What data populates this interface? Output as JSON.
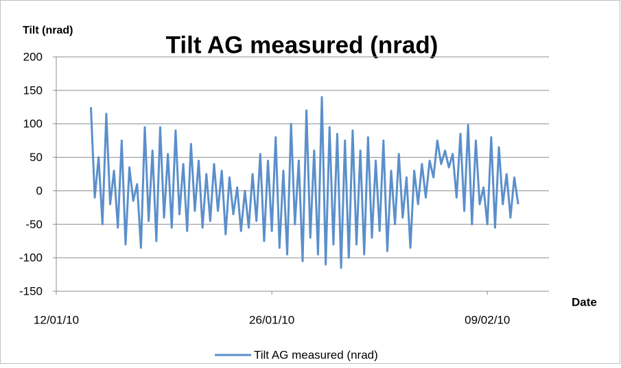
{
  "chart_data": {
    "type": "line",
    "title": "Tilt AG measured (nrad)",
    "ylabel": "Tilt (nrad)",
    "xlabel": "Date",
    "xlim": [
      40190,
      40222
    ],
    "xticks": [
      {
        "value": 40190,
        "label": "12/01/10"
      },
      {
        "value": 40204,
        "label": "26/01/10"
      },
      {
        "value": 40218,
        "label": "09/02/10"
      }
    ],
    "ylim": [
      -150,
      200
    ],
    "yticks": [
      -150,
      -100,
      -50,
      0,
      50,
      100,
      150,
      200
    ],
    "grid": true,
    "legend": "bottom",
    "x": [
      40192.25,
      40192.5,
      40192.75,
      40193,
      40193.25,
      40193.5,
      40193.75,
      40194,
      40194.25,
      40194.5,
      40194.75,
      40195,
      40195.25,
      40195.5,
      40195.75,
      40196,
      40196.25,
      40196.5,
      40196.75,
      40197,
      40197.25,
      40197.5,
      40197.75,
      40198,
      40198.25,
      40198.5,
      40198.75,
      40199,
      40199.25,
      40199.5,
      40199.75,
      40200,
      40200.25,
      40200.5,
      40200.75,
      40201,
      40201.25,
      40201.5,
      40201.75,
      40202,
      40202.25,
      40202.5,
      40202.75,
      40203,
      40203.25,
      40203.5,
      40203.75,
      40204,
      40204.25,
      40204.5,
      40204.75,
      40205,
      40205.25,
      40205.5,
      40205.75,
      40206,
      40206.25,
      40206.5,
      40206.75,
      40207,
      40207.25,
      40207.5,
      40207.75,
      40208,
      40208.25,
      40208.5,
      40208.75,
      40209,
      40209.25,
      40209.5,
      40209.75,
      40210,
      40210.25,
      40210.5,
      40210.75,
      40211,
      40211.25,
      40211.5,
      40211.75,
      40212,
      40212.25,
      40212.5,
      40212.75,
      40213,
      40213.25,
      40213.5,
      40213.75,
      40214,
      40214.25,
      40214.5,
      40214.75,
      40215,
      40215.25,
      40215.5,
      40215.75,
      40216,
      40216.25,
      40216.5,
      40216.75,
      40217,
      40217.25,
      40217.5,
      40217.75,
      40218,
      40218.25,
      40218.5,
      40218.75,
      40219,
      40219.25,
      40219.5,
      40219.75,
      40220
    ],
    "series": [
      {
        "name": "Tilt AG measured (nrad)",
        "color": "#5b8fcb",
        "values": [
          125,
          -10,
          50,
          -50,
          115,
          -20,
          30,
          -55,
          75,
          -80,
          35,
          -15,
          10,
          -85,
          95,
          -45,
          60,
          -75,
          95,
          -40,
          55,
          -55,
          90,
          -35,
          40,
          -60,
          70,
          -30,
          45,
          -55,
          25,
          -45,
          40,
          -30,
          30,
          -65,
          20,
          -35,
          5,
          -60,
          0,
          -55,
          25,
          -45,
          55,
          -75,
          45,
          -60,
          80,
          -85,
          30,
          -95,
          100,
          -50,
          45,
          -105,
          120,
          -70,
          60,
          -95,
          140,
          -110,
          95,
          -80,
          85,
          -115,
          75,
          -100,
          90,
          -80,
          60,
          -95,
          80,
          -70,
          45,
          -60,
          75,
          -90,
          30,
          -50,
          55,
          -40,
          20,
          -85,
          30,
          -20,
          40,
          -10,
          45,
          20,
          75,
          40,
          60,
          35,
          55,
          -10,
          85,
          -30,
          98,
          -50,
          75,
          -20,
          5,
          -50,
          80,
          -55,
          65,
          -20,
          25,
          -40,
          20,
          -20
        ]
      }
    ]
  }
}
